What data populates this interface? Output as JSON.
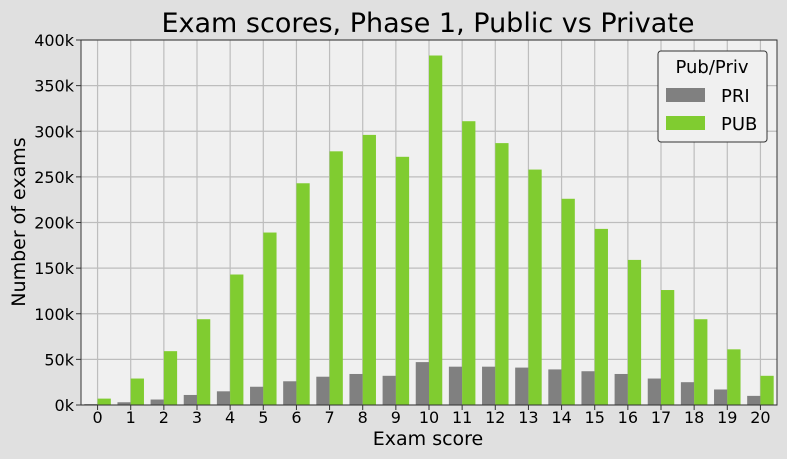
{
  "chart_data": {
    "type": "bar",
    "title": "Exam scores, Phase 1, Public vs Private",
    "xlabel": "Exam score",
    "ylabel": "Number of exams",
    "categories": [
      "0",
      "1",
      "2",
      "3",
      "4",
      "5",
      "6",
      "7",
      "8",
      "9",
      "10",
      "11",
      "12",
      "13",
      "14",
      "15",
      "16",
      "17",
      "18",
      "19",
      "20"
    ],
    "ylim": [
      0,
      400000
    ],
    "yticks": [
      0,
      50000,
      100000,
      150000,
      200000,
      250000,
      300000,
      350000,
      400000
    ],
    "ytick_labels": [
      "0k",
      "50k",
      "100k",
      "150k",
      "200k",
      "250k",
      "300k",
      "350k",
      "400k"
    ],
    "grid": true,
    "legend": {
      "title": "Pub/Priv",
      "position": "top-right"
    },
    "series": [
      {
        "name": "PRI",
        "color": "#808080",
        "values": [
          1000,
          3000,
          6000,
          11000,
          15000,
          20000,
          26000,
          31000,
          34000,
          32000,
          47000,
          42000,
          42000,
          41000,
          39000,
          37000,
          34000,
          29000,
          25000,
          17000,
          10000
        ]
      },
      {
        "name": "PUB",
        "color": "#80cc30",
        "values": [
          7000,
          29000,
          59000,
          94000,
          143000,
          189000,
          243000,
          278000,
          296000,
          272000,
          383000,
          311000,
          287000,
          258000,
          226000,
          193000,
          159000,
          126000,
          94000,
          61000,
          32000
        ]
      }
    ]
  }
}
